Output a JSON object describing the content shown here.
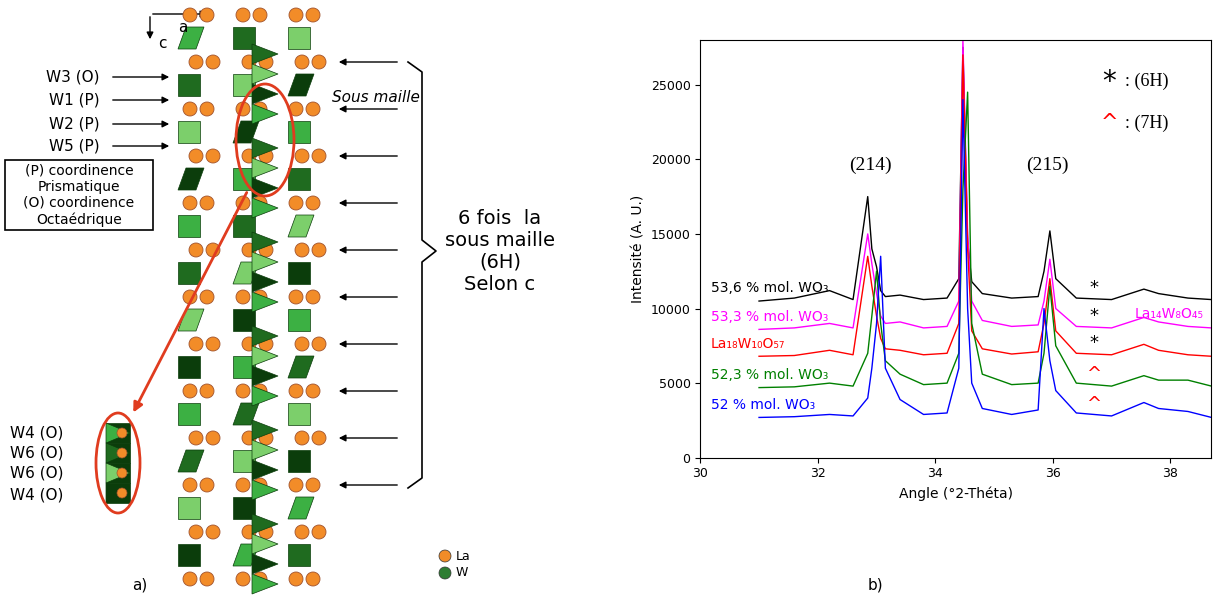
{
  "diagram": {
    "panel_label": "a)",
    "axes": [
      "a",
      "c"
    ],
    "sites": [
      "W3 (O)",
      "W1 (P)",
      "W2 (P)",
      "W5 (P)"
    ],
    "sublattice": "Sous maille",
    "key_box": [
      "(P) coordinence",
      "Prismatique",
      "(O) coordinence",
      "Octaédrique"
    ],
    "chain": [
      "W4 (O)",
      "W6 (O)",
      "W6 (O)",
      "W4 (O)"
    ],
    "brace_text": [
      "6 fois  la",
      "sous maille",
      "(6H)",
      "Selon c"
    ],
    "legend": [
      {
        "label": "La",
        "color": "#f28c28"
      },
      {
        "label": "W",
        "color": "#2e7d32"
      }
    ]
  },
  "chart_data": {
    "type": "line",
    "panel_label": "b)",
    "x_label": "Angle (°2-Théta)",
    "y_label": "Intensité (A. U.)",
    "xlim": [
      30,
      38.7
    ],
    "ylim": [
      0,
      28000
    ],
    "xticks": [
      30,
      32,
      34,
      36,
      38
    ],
    "yticks": [
      0,
      5000,
      10000,
      15000,
      20000,
      25000
    ],
    "x": [
      31.0,
      31.6,
      32.2,
      32.6,
      32.85,
      32.92,
      33.0,
      33.07,
      33.15,
      33.4,
      33.8,
      34.2,
      34.4,
      34.47,
      34.55,
      34.62,
      34.8,
      35.3,
      35.75,
      35.85,
      35.95,
      36.05,
      36.4,
      37.0,
      37.55,
      37.8,
      38.3,
      38.7
    ],
    "series": [
      {
        "name": "53,6 % mol. WO₃",
        "color": "#000000",
        "polytype": "*",
        "values": [
          10500,
          10700,
          11200,
          10600,
          17500,
          14000,
          12800,
          11200,
          10800,
          10900,
          10600,
          10700,
          12000,
          27500,
          14500,
          11800,
          11000,
          10700,
          10800,
          12500,
          15200,
          12000,
          10700,
          10600,
          11300,
          11000,
          10700,
          10600
        ]
      },
      {
        "name": "53,3 % mol. WO₃",
        "color": "#ff00ff",
        "polytype": "*",
        "phase": "La₁₄W₈O₄₅",
        "values": [
          8600,
          8700,
          9000,
          8700,
          15000,
          13000,
          11000,
          9500,
          9000,
          9100,
          8700,
          8800,
          10500,
          28000,
          15000,
          10500,
          9200,
          8800,
          8900,
          10500,
          13300,
          10000,
          8800,
          8700,
          9400,
          9100,
          8800,
          8700
        ]
      },
      {
        "name": "La₁₈W₁₀O₅₇",
        "color": "#ff0000",
        "polytype": "*",
        "values": [
          6800,
          6850,
          7200,
          6900,
          13500,
          11500,
          9500,
          8000,
          7300,
          7200,
          6900,
          7000,
          9000,
          27000,
          14000,
          8500,
          7300,
          6950,
          7100,
          9000,
          12000,
          8500,
          7000,
          6900,
          7600,
          7200,
          6900,
          6800
        ]
      },
      {
        "name": "52,3 % mol. WO₃",
        "color": "#008000",
        "polytype": "^",
        "values": [
          4700,
          4750,
          5000,
          4800,
          7000,
          9500,
          12500,
          9000,
          6500,
          5600,
          4900,
          5000,
          7000,
          18000,
          24500,
          9000,
          5600,
          4900,
          5000,
          7000,
          11500,
          7500,
          5000,
          4800,
          5500,
          5200,
          5200,
          4800
        ]
      },
      {
        "name": "52 % mol. WO₃",
        "color": "#0000ff",
        "polytype": "^",
        "values": [
          2700,
          2750,
          2900,
          2800,
          4000,
          6000,
          9000,
          13500,
          6000,
          3900,
          2900,
          3000,
          6000,
          24000,
          10000,
          5000,
          3300,
          2900,
          3200,
          10000,
          6500,
          4500,
          3000,
          2800,
          3700,
          3300,
          3100,
          2700
        ]
      }
    ],
    "peaks": [
      {
        "label": "(214)",
        "x": 32.9
      },
      {
        "label": "(215)",
        "x": 35.9
      }
    ],
    "key": [
      {
        "symbol": "*",
        "text": ": (6H)",
        "color": "#000000"
      },
      {
        "symbol": "^",
        "text": ": (7H)",
        "color": "#ff0000"
      }
    ]
  }
}
